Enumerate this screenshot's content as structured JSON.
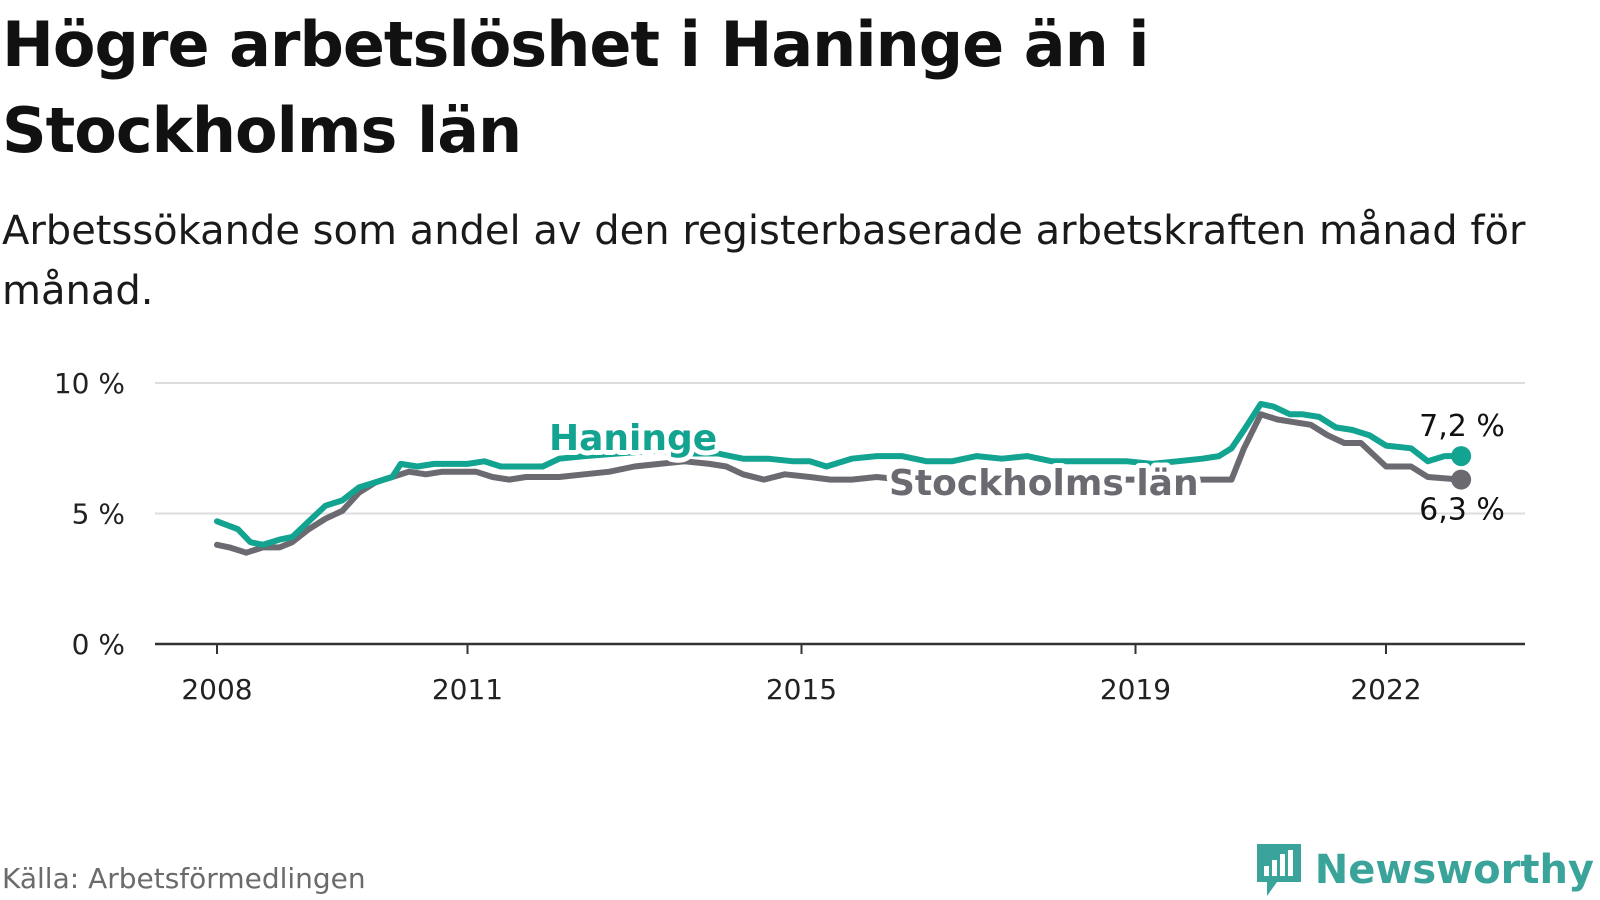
{
  "title": "Högre arbetslöshet i Haninge än i Stockholms län",
  "subtitle": "Arbetssökande som andel av den registerbaserade arbetskraften månad för månad.",
  "source": "Källa: Arbetsförmedlingen",
  "brand": {
    "name": "Newsworthy",
    "logo_icon": "newsworthy-logo-icon"
  },
  "colors": {
    "haninge": "#12a391",
    "stockholm": "#6a6a70",
    "grid": "#dddddd",
    "axis": "#333333"
  },
  "chart_data": {
    "type": "line",
    "title": "Högre arbetslöshet i Haninge än i Stockholms län",
    "ylabel": "",
    "xlabel": "",
    "ylim": [
      0,
      10
    ],
    "y_ticks": [
      {
        "value": 0,
        "label": "0 %"
      },
      {
        "value": 5,
        "label": "5 %"
      },
      {
        "value": 10,
        "label": "10 %"
      }
    ],
    "x_ticks": [
      2008,
      2011,
      2015,
      2019,
      2022
    ],
    "xlim": [
      2007.3,
      2023.8
    ],
    "grid": true,
    "legend": "inline",
    "series": [
      {
        "name": "Haninge",
        "color": "#12a391",
        "end_label": "7,2 %",
        "points": [
          [
            2008.0,
            4.7
          ],
          [
            2008.25,
            4.4
          ],
          [
            2008.4,
            3.9
          ],
          [
            2008.55,
            3.8
          ],
          [
            2008.75,
            4.0
          ],
          [
            2008.9,
            4.1
          ],
          [
            2009.1,
            4.7
          ],
          [
            2009.3,
            5.3
          ],
          [
            2009.5,
            5.5
          ],
          [
            2009.7,
            6.0
          ],
          [
            2009.9,
            6.2
          ],
          [
            2010.1,
            6.4
          ],
          [
            2010.2,
            6.9
          ],
          [
            2010.4,
            6.8
          ],
          [
            2010.6,
            6.9
          ],
          [
            2010.8,
            6.9
          ],
          [
            2011.0,
            6.9
          ],
          [
            2011.2,
            7.0
          ],
          [
            2011.4,
            6.8
          ],
          [
            2011.6,
            6.8
          ],
          [
            2011.9,
            6.8
          ],
          [
            2012.1,
            7.1
          ],
          [
            2012.4,
            7.2
          ],
          [
            2012.8,
            7.3
          ],
          [
            2013.2,
            7.4
          ],
          [
            2013.6,
            7.3
          ],
          [
            2014.0,
            7.3
          ],
          [
            2014.3,
            7.1
          ],
          [
            2014.6,
            7.1
          ],
          [
            2014.9,
            7.0
          ],
          [
            2015.1,
            7.0
          ],
          [
            2015.3,
            6.8
          ],
          [
            2015.6,
            7.1
          ],
          [
            2015.9,
            7.2
          ],
          [
            2016.2,
            7.2
          ],
          [
            2016.5,
            7.0
          ],
          [
            2016.8,
            7.0
          ],
          [
            2017.1,
            7.2
          ],
          [
            2017.4,
            7.1
          ],
          [
            2017.7,
            7.2
          ],
          [
            2018.0,
            7.0
          ],
          [
            2018.3,
            7.0
          ],
          [
            2018.6,
            7.0
          ],
          [
            2018.9,
            7.0
          ],
          [
            2019.2,
            6.9
          ],
          [
            2019.5,
            7.0
          ],
          [
            2019.8,
            7.1
          ],
          [
            2020.0,
            7.2
          ],
          [
            2020.15,
            7.5
          ],
          [
            2020.3,
            8.2
          ],
          [
            2020.5,
            9.2
          ],
          [
            2020.65,
            9.1
          ],
          [
            2020.85,
            8.8
          ],
          [
            2021.0,
            8.8
          ],
          [
            2021.2,
            8.7
          ],
          [
            2021.4,
            8.3
          ],
          [
            2021.6,
            8.2
          ],
          [
            2021.8,
            8.0
          ],
          [
            2022.0,
            7.6
          ],
          [
            2022.3,
            7.5
          ],
          [
            2022.5,
            7.0
          ],
          [
            2022.7,
            7.2
          ],
          [
            2022.9,
            7.2
          ]
        ]
      },
      {
        "name": "Stockholms län",
        "color": "#6a6a70",
        "end_label": "6,3 %",
        "points": [
          [
            2008.0,
            3.8
          ],
          [
            2008.15,
            3.7
          ],
          [
            2008.35,
            3.5
          ],
          [
            2008.55,
            3.7
          ],
          [
            2008.75,
            3.7
          ],
          [
            2008.9,
            3.9
          ],
          [
            2009.1,
            4.4
          ],
          [
            2009.3,
            4.8
          ],
          [
            2009.5,
            5.1
          ],
          [
            2009.7,
            5.8
          ],
          [
            2009.9,
            6.2
          ],
          [
            2010.1,
            6.4
          ],
          [
            2010.3,
            6.6
          ],
          [
            2010.5,
            6.5
          ],
          [
            2010.7,
            6.6
          ],
          [
            2010.9,
            6.6
          ],
          [
            2011.1,
            6.6
          ],
          [
            2011.3,
            6.4
          ],
          [
            2011.5,
            6.3
          ],
          [
            2011.7,
            6.4
          ],
          [
            2011.9,
            6.4
          ],
          [
            2012.1,
            6.4
          ],
          [
            2012.4,
            6.5
          ],
          [
            2012.7,
            6.6
          ],
          [
            2013.0,
            6.8
          ],
          [
            2013.3,
            6.9
          ],
          [
            2013.6,
            7.0
          ],
          [
            2013.9,
            6.9
          ],
          [
            2014.1,
            6.8
          ],
          [
            2014.3,
            6.5
          ],
          [
            2014.55,
            6.3
          ],
          [
            2014.8,
            6.5
          ],
          [
            2015.1,
            6.4
          ],
          [
            2015.35,
            6.3
          ],
          [
            2015.6,
            6.3
          ],
          [
            2015.9,
            6.4
          ],
          [
            2016.2,
            6.3
          ],
          [
            2016.5,
            6.3
          ],
          [
            2016.8,
            6.3
          ],
          [
            2017.1,
            6.3
          ],
          [
            2017.4,
            6.3
          ],
          [
            2017.7,
            6.3
          ],
          [
            2018.0,
            6.3
          ],
          [
            2018.3,
            6.3
          ],
          [
            2018.6,
            6.3
          ],
          [
            2018.9,
            6.3
          ],
          [
            2019.2,
            6.3
          ],
          [
            2019.5,
            6.3
          ],
          [
            2019.8,
            6.3
          ],
          [
            2020.0,
            6.3
          ],
          [
            2020.15,
            6.3
          ],
          [
            2020.3,
            7.5
          ],
          [
            2020.5,
            8.8
          ],
          [
            2020.7,
            8.6
          ],
          [
            2020.9,
            8.5
          ],
          [
            2021.1,
            8.4
          ],
          [
            2021.3,
            8.0
          ],
          [
            2021.5,
            7.7
          ],
          [
            2021.7,
            7.7
          ],
          [
            2022.0,
            6.8
          ],
          [
            2022.3,
            6.8
          ],
          [
            2022.5,
            6.4
          ],
          [
            2022.9,
            6.3
          ]
        ]
      }
    ]
  }
}
